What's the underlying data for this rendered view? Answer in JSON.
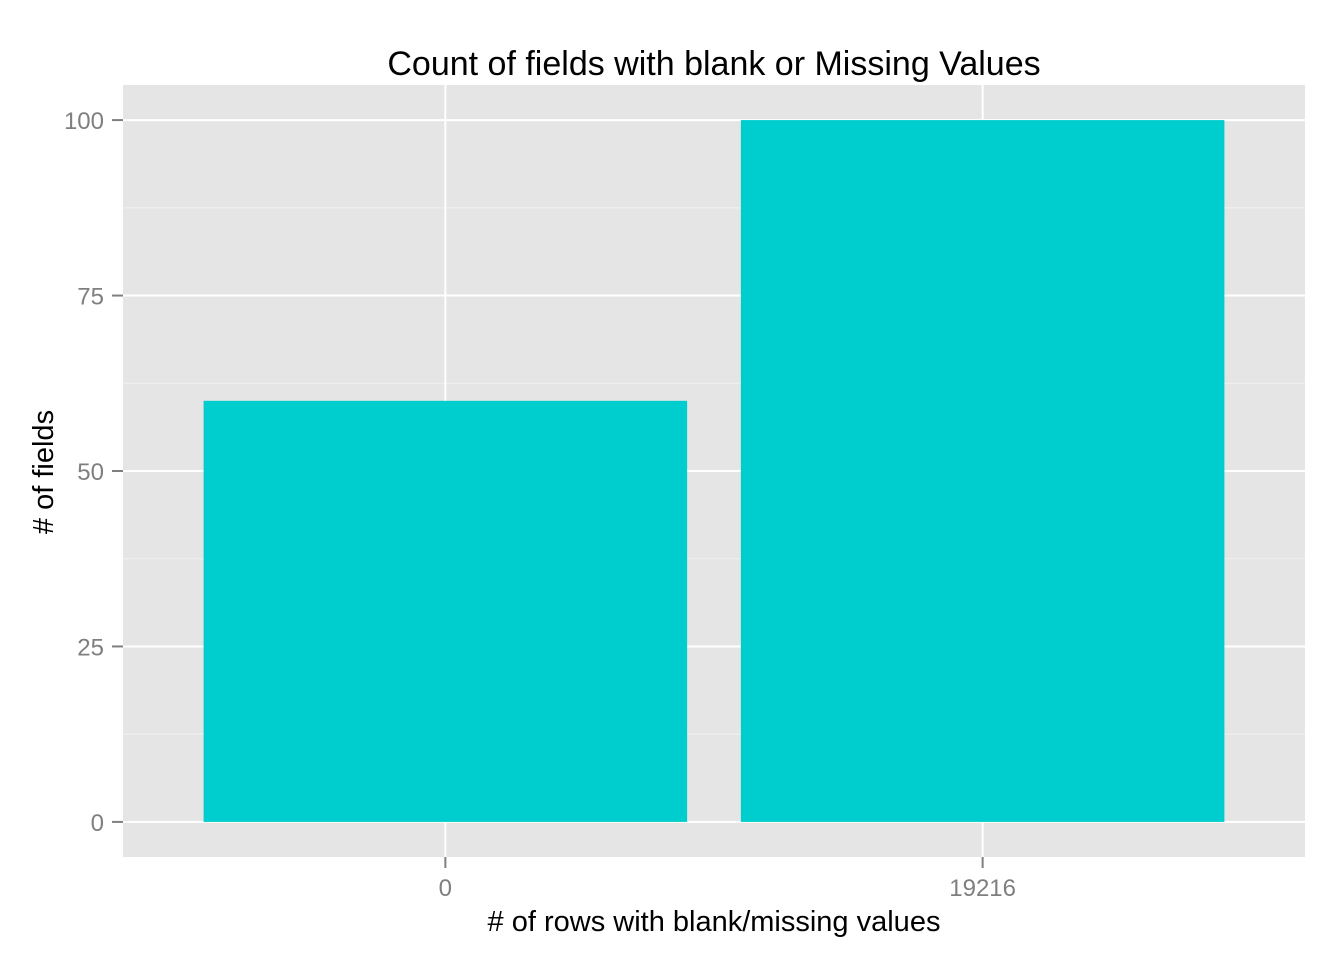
{
  "chart_data": {
    "type": "bar",
    "title": "Count of fields with blank or Missing Values",
    "xlabel": "# of rows with blank/missing values",
    "ylabel": "# of fields",
    "categories": [
      "0",
      "19216"
    ],
    "values": [
      60,
      100
    ],
    "ylim": [
      -5,
      105
    ],
    "yticks": [
      0,
      25,
      50,
      75,
      100
    ],
    "grid": true,
    "legend": "none",
    "colors": {
      "bar": "#00CDCD",
      "panel": "#E5E5E5",
      "grid_major": "#FFFFFF",
      "grid_minor": "#F2F2F2",
      "tick_text": "#7F7F7F",
      "text": "#000000"
    }
  }
}
